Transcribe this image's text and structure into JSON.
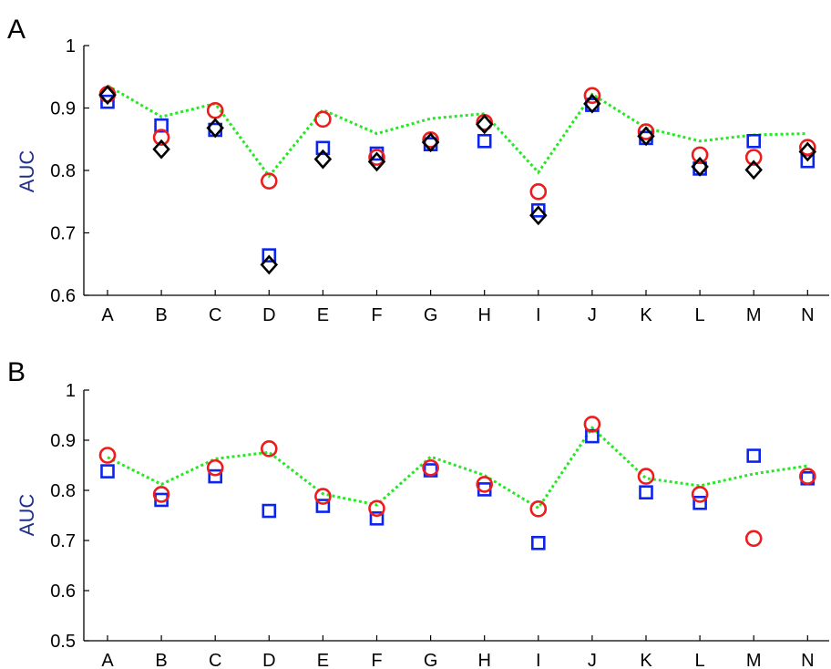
{
  "colors": {
    "square": "#0b24ef",
    "circle": "#ee1c1c",
    "diamond": "#000000",
    "line": "#23e923",
    "axis": "#000000",
    "ylabel": "#1f2e8c"
  },
  "chart_data": [
    {
      "panel": "A",
      "type": "scatter",
      "ylabel": "AUC",
      "xlabel": "",
      "ylim": [
        0.6,
        1.0
      ],
      "yticks": [
        "0.6",
        "0.7",
        "0.8",
        "0.9",
        "1"
      ],
      "grid": false,
      "categories": [
        "A",
        "B",
        "C",
        "D",
        "E",
        "F",
        "G",
        "H",
        "I",
        "J",
        "K",
        "L",
        "M",
        "N"
      ],
      "series": [
        {
          "marker": "square",
          "values": [
            0.91,
            0.872,
            0.865,
            0.664,
            0.836,
            0.827,
            0.842,
            0.847,
            0.736,
            0.905,
            0.852,
            0.803,
            0.847,
            0.815
          ]
        },
        {
          "marker": "circle",
          "values": [
            0.922,
            0.853,
            0.896,
            0.783,
            0.882,
            0.821,
            0.849,
            0.877,
            0.766,
            0.92,
            0.862,
            0.825,
            0.821,
            0.837
          ]
        },
        {
          "marker": "diamond",
          "values": [
            0.921,
            0.834,
            0.868,
            0.649,
            0.818,
            0.814,
            0.845,
            0.874,
            0.728,
            0.907,
            0.855,
            0.806,
            0.801,
            0.83
          ]
        },
        {
          "marker": "dotted-line",
          "values": [
            0.936,
            0.886,
            0.907,
            0.791,
            0.897,
            0.859,
            0.883,
            0.891,
            0.797,
            0.922,
            0.868,
            0.847,
            0.857,
            0.859
          ]
        }
      ]
    },
    {
      "panel": "B",
      "type": "scatter",
      "ylabel": "AUC",
      "xlabel": "",
      "ylim": [
        0.5,
        1.0
      ],
      "yticks": [
        "0.5",
        "0.6",
        "0.7",
        "0.8",
        "0.9",
        "1"
      ],
      "grid": false,
      "categories": [
        "A",
        "B",
        "C",
        "D",
        "E",
        "F",
        "G",
        "H",
        "I",
        "J",
        "K",
        "L",
        "M",
        "N"
      ],
      "series": [
        {
          "marker": "square",
          "values": [
            0.838,
            0.781,
            0.828,
            0.759,
            0.769,
            0.744,
            0.84,
            0.802,
            0.695,
            0.908,
            0.796,
            0.775,
            0.869,
            0.824
          ]
        },
        {
          "marker": "circle",
          "values": [
            0.87,
            0.792,
            0.845,
            0.883,
            0.788,
            0.764,
            0.845,
            0.812,
            0.763,
            0.932,
            0.828,
            0.792,
            0.704,
            0.828
          ]
        },
        {
          "marker": "dotted-line",
          "values": [
            0.866,
            0.812,
            0.863,
            0.876,
            0.793,
            0.771,
            0.867,
            0.83,
            0.765,
            0.925,
            0.824,
            0.809,
            0.833,
            0.849
          ]
        }
      ]
    }
  ]
}
